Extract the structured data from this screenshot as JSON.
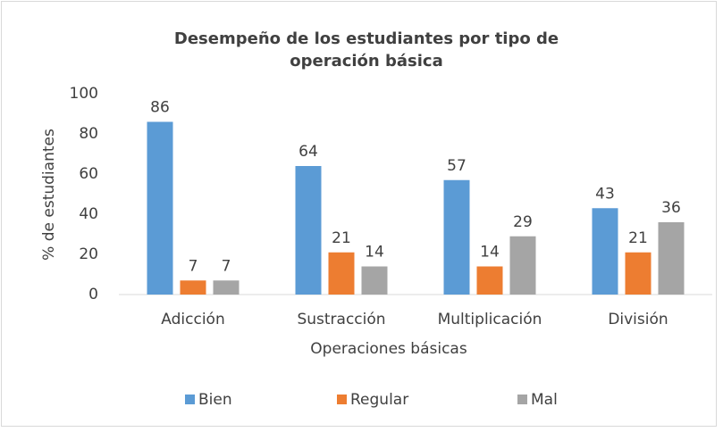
{
  "chart_data": {
    "type": "bar",
    "title": [
      "Desempeño de los estudiantes por tipo de",
      "operación básica"
    ],
    "x_label": "Operaciones básicas",
    "y_label": "% de estudiantes",
    "categories": [
      "Adicción",
      "Sustracción",
      "Multiplicación",
      "División"
    ],
    "series": [
      {
        "name": "Bien",
        "color": "#5b9bd5",
        "values": [
          86,
          64,
          57,
          43
        ]
      },
      {
        "name": "Regular",
        "color": "#ed7d31",
        "values": [
          7,
          21,
          14,
          21
        ]
      },
      {
        "name": "Mal",
        "color": "#a5a5a5",
        "values": [
          7,
          14,
          29,
          36
        ]
      }
    ],
    "ylim": [
      0,
      100
    ],
    "yticks": [
      0,
      20,
      40,
      60,
      80,
      100
    ],
    "grid": false,
    "legend": "bottom",
    "data_labels": true
  }
}
